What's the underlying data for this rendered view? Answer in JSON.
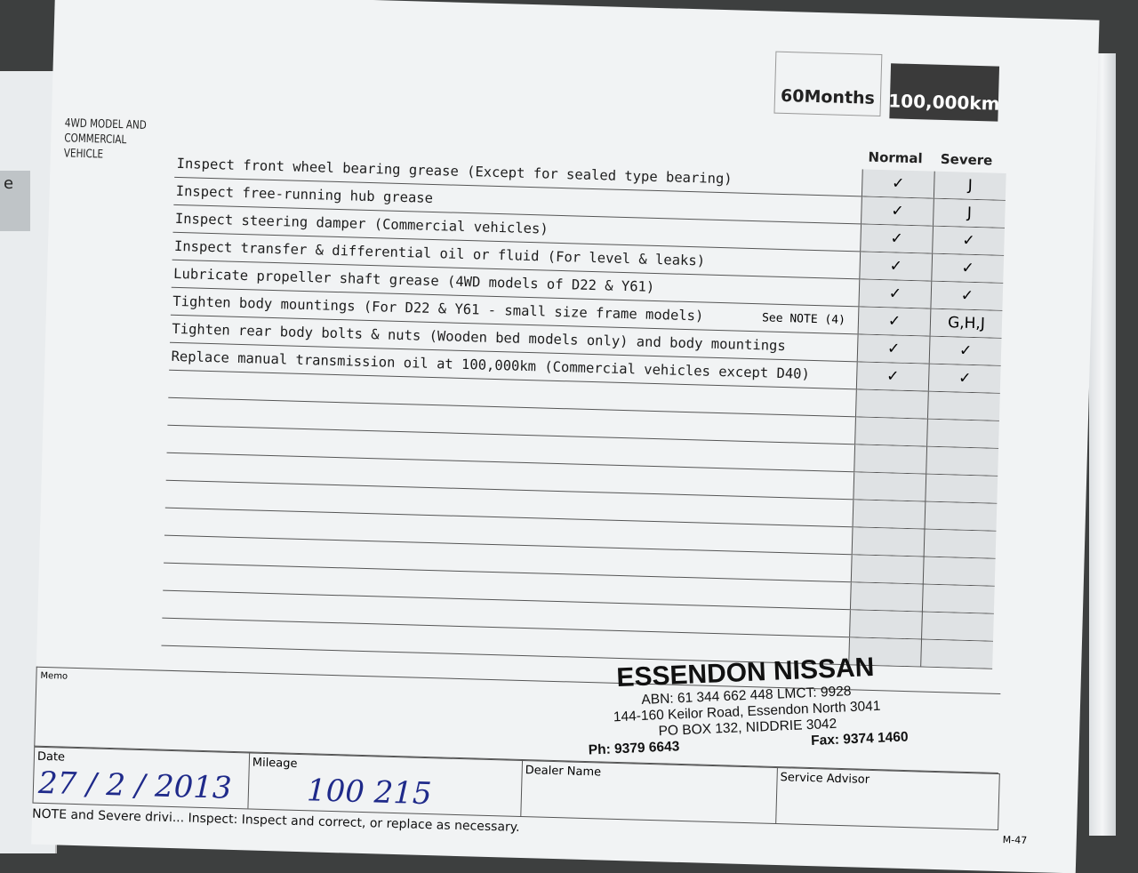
{
  "header": {
    "months": "60Months",
    "km": "100,000km"
  },
  "section_label": "4WD MODEL AND COMMERCIAL VEHICLE",
  "columns": {
    "normal": "Normal",
    "severe": "Severe"
  },
  "rows": [
    {
      "text": "Inspect front wheel bearing grease (Except for sealed type bearing)",
      "note": "",
      "normal": "✓",
      "severe": "J"
    },
    {
      "text": "Inspect free-running hub grease",
      "note": "",
      "normal": "✓",
      "severe": "J"
    },
    {
      "text": "Inspect steering damper (Commercial vehicles)",
      "note": "",
      "normal": "✓",
      "severe": "✓"
    },
    {
      "text": "Inspect transfer & differential oil or fluid (For level & leaks)",
      "note": "",
      "normal": "✓",
      "severe": "✓"
    },
    {
      "text": "Lubricate propeller shaft grease (4WD models of D22 & Y61)",
      "note": "",
      "normal": "✓",
      "severe": "✓"
    },
    {
      "text": "Tighten body mountings (For D22 & Y61 - small size frame models)",
      "note": "See NOTE (4)",
      "normal": "✓",
      "severe": "G,H,J"
    },
    {
      "text": "Tighten rear body bolts & nuts (Wooden bed models only) and body mountings",
      "note": "",
      "normal": "✓",
      "severe": "✓"
    },
    {
      "text": "Replace manual transmission oil at 100,000km (Commercial vehicles except D40)",
      "note": "",
      "normal": "✓",
      "severe": "✓"
    }
  ],
  "memo_label": "Memo",
  "stamp": {
    "name": "ESSENDON NISSAN",
    "abn": "ABN: 61 344 662 448  LMCT: 9928",
    "address": "144-160 Keilor Road, Essendon North 3041",
    "pobox": "PO BOX 132, NIDDRIE 3042",
    "phone": "Ph: 9379 6643",
    "fax": "Fax: 9374 1460"
  },
  "bottom": {
    "date_label": "Date",
    "date_value": "27 / 2 / 2013",
    "mileage_label": "Mileage",
    "mileage_value": "100 215",
    "dealer_label": "Dealer Name",
    "advisor_label": "Service Advisor"
  },
  "footer": "NOTE and Severe drivi...   Inspect: Inspect and correct, or replace as necessary.",
  "page_number": "M-47",
  "left_page_tab": "e"
}
